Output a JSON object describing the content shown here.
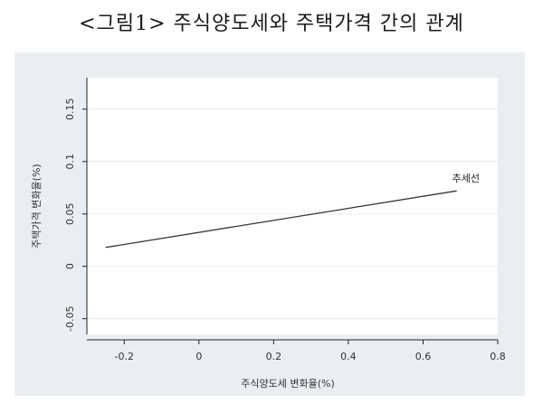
{
  "page": {
    "title": "<그림1> 주식양도세와 주택가격 간의 관계"
  },
  "chart_data": {
    "type": "line",
    "title": "<그림1> 주식양도세와 주택가격 간의 관계",
    "xlabel": "주식양도세 변화율(%)",
    "ylabel": "주택가격 변화율(%)",
    "xlim": [
      -0.3,
      0.8
    ],
    "ylim": [
      -0.065,
      0.18
    ],
    "x_ticks": [
      -0.2,
      0,
      0.2,
      0.4,
      0.6,
      0.8
    ],
    "x_tick_labels": [
      "-0.2",
      "0",
      "0.2",
      "0.4",
      "0.6",
      "0.8"
    ],
    "y_ticks": [
      -0.05,
      0,
      0.05,
      0.1,
      0.15
    ],
    "y_tick_labels": [
      "-0.05",
      "0",
      "0.05",
      "0.1",
      "0.15"
    ],
    "grid": true,
    "series": [
      {
        "name": "추세선",
        "x": [
          -0.25,
          0.69
        ],
        "y": [
          0.018,
          0.072
        ]
      }
    ],
    "annotation": "추세선"
  }
}
